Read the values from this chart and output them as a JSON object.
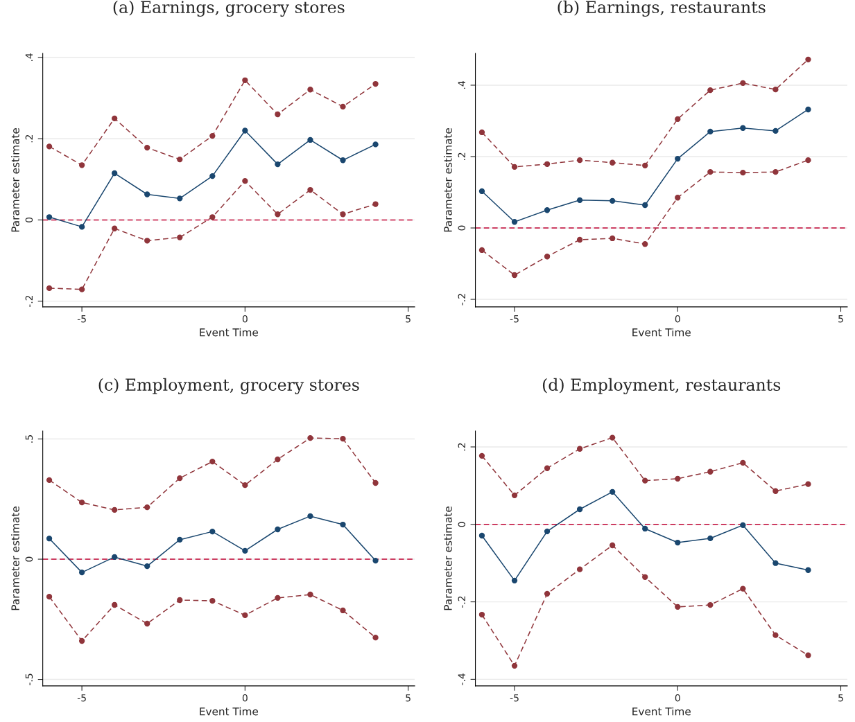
{
  "chart_data": [
    {
      "type": "line",
      "title": "(a) Earnings, grocery stores",
      "xlabel": "Event Time",
      "ylabel": "Parameter estimate",
      "x": [
        -6,
        -5,
        -4,
        -3,
        -2,
        -1,
        0,
        1,
        2,
        3,
        4
      ],
      "marker": "circle",
      "grid": "y",
      "xlim": [
        -6.2,
        5.2
      ],
      "ylim": [
        -0.214,
        0.41
      ],
      "xticks": [
        -5,
        0,
        5
      ],
      "yticks": [
        {
          "value": -0.2,
          "label": "-.2"
        },
        0,
        {
          "value": 0.2,
          "label": ".2"
        },
        {
          "value": 0.4,
          "label": ".4"
        }
      ],
      "ref_lines": [
        {
          "axis": "y",
          "value": 0,
          "color": "#c10534",
          "line_style": "dashed"
        }
      ],
      "series": [
        {
          "color": "#90353b",
          "line_style": "dashed",
          "values": [
            0.181,
            0.135,
            0.25,
            0.178,
            0.149,
            0.207,
            0.344,
            0.26,
            0.321,
            0.279,
            0.335
          ]
        },
        {
          "color": "#1a476f",
          "line_style": "solid",
          "values": [
            0.007,
            -0.017,
            0.115,
            0.063,
            0.053,
            0.108,
            0.22,
            0.137,
            0.197,
            0.147,
            0.186
          ]
        },
        {
          "color": "#90353b",
          "line_style": "dashed",
          "values": [
            -0.168,
            -0.171,
            -0.021,
            -0.051,
            -0.043,
            0.007,
            0.096,
            0.014,
            0.074,
            0.014,
            0.039
          ]
        }
      ]
    },
    {
      "type": "line",
      "title": "(b) Earnings, restaurants",
      "xlabel": "Event Time",
      "ylabel": "Parameter estimate",
      "x": [
        -6,
        -5,
        -4,
        -3,
        -2,
        -1,
        0,
        1,
        2,
        3,
        4
      ],
      "marker": "circle",
      "grid": "y",
      "xlim": [
        -6.2,
        5.2
      ],
      "ylim": [
        -0.221,
        0.489
      ],
      "xticks": [
        -5,
        0,
        5
      ],
      "yticks": [
        {
          "value": -0.2,
          "label": "-.2"
        },
        0,
        {
          "value": 0.2,
          "label": ".2"
        },
        {
          "value": 0.4,
          "label": ".4"
        }
      ],
      "ref_lines": [
        {
          "axis": "y",
          "value": 0,
          "color": "#c10534",
          "line_style": "dashed"
        }
      ],
      "series": [
        {
          "color": "#90353b",
          "line_style": "dashed",
          "values": [
            0.268,
            0.171,
            0.179,
            0.19,
            0.183,
            0.175,
            0.305,
            0.386,
            0.406,
            0.388,
            0.472
          ]
        },
        {
          "color": "#1a476f",
          "line_style": "solid",
          "values": [
            0.103,
            0.017,
            0.05,
            0.078,
            0.076,
            0.064,
            0.194,
            0.27,
            0.28,
            0.272,
            0.332
          ]
        },
        {
          "color": "#90353b",
          "line_style": "dashed",
          "values": [
            -0.062,
            -0.132,
            -0.08,
            -0.033,
            -0.029,
            -0.045,
            0.085,
            0.157,
            0.155,
            0.157,
            0.19
          ]
        }
      ]
    },
    {
      "type": "line",
      "title": "(c) Employment, grocery stores",
      "xlabel": "Event Time",
      "ylabel": "Parameter estimate",
      "x": [
        -6,
        -5,
        -4,
        -3,
        -2,
        -1,
        0,
        1,
        2,
        3,
        4
      ],
      "marker": "circle",
      "grid": "y",
      "xlim": [
        -6.2,
        5.2
      ],
      "ylim": [
        -0.527,
        0.533
      ],
      "xticks": [
        -5,
        0,
        5
      ],
      "yticks": [
        {
          "value": -0.5,
          "label": "-.5"
        },
        0,
        {
          "value": 0.5,
          "label": ".5"
        }
      ],
      "ref_lines": [
        {
          "axis": "y",
          "value": 0,
          "color": "#c10534",
          "line_style": "dashed"
        }
      ],
      "series": [
        {
          "color": "#90353b",
          "line_style": "dashed",
          "values": [
            0.329,
            0.236,
            0.205,
            0.216,
            0.337,
            0.406,
            0.308,
            0.415,
            0.504,
            0.501,
            0.317
          ]
        },
        {
          "color": "#1a476f",
          "line_style": "solid",
          "values": [
            0.086,
            -0.055,
            0.009,
            -0.029,
            0.081,
            0.115,
            0.035,
            0.124,
            0.179,
            0.144,
            -0.006
          ]
        },
        {
          "color": "#90353b",
          "line_style": "dashed",
          "values": [
            -0.156,
            -0.34,
            -0.19,
            -0.268,
            -0.17,
            -0.173,
            -0.233,
            -0.161,
            -0.147,
            -0.213,
            -0.326
          ]
        }
      ]
    },
    {
      "type": "line",
      "title": "(d) Employment, restaurants",
      "xlabel": "Event Time",
      "ylabel": "Parameter estimate",
      "x": [
        -6,
        -5,
        -4,
        -3,
        -2,
        -1,
        0,
        1,
        2,
        3,
        4
      ],
      "marker": "circle",
      "grid": "y",
      "xlim": [
        -6.2,
        5.2
      ],
      "ylim": [
        -0.417,
        0.241
      ],
      "xticks": [
        -5,
        0,
        5
      ],
      "yticks": [
        {
          "value": -0.4,
          "label": "-.4"
        },
        {
          "value": -0.2,
          "label": "-.2"
        },
        0,
        {
          "value": 0.2,
          "label": ".2"
        }
      ],
      "ref_lines": [
        {
          "axis": "y",
          "value": 0,
          "color": "#c10534",
          "line_style": "dashed"
        }
      ],
      "series": [
        {
          "color": "#90353b",
          "line_style": "dashed",
          "values": [
            0.177,
            0.075,
            0.145,
            0.195,
            0.224,
            0.113,
            0.118,
            0.136,
            0.159,
            0.086,
            0.104
          ]
        },
        {
          "color": "#1a476f",
          "line_style": "solid",
          "values": [
            -0.029,
            -0.145,
            -0.018,
            0.039,
            0.084,
            -0.011,
            -0.047,
            -0.036,
            -0.002,
            -0.1,
            -0.118
          ]
        },
        {
          "color": "#90353b",
          "line_style": "dashed",
          "values": [
            -0.233,
            -0.365,
            -0.179,
            -0.116,
            -0.054,
            -0.136,
            -0.213,
            -0.208,
            -0.166,
            -0.286,
            -0.338
          ]
        }
      ]
    }
  ]
}
